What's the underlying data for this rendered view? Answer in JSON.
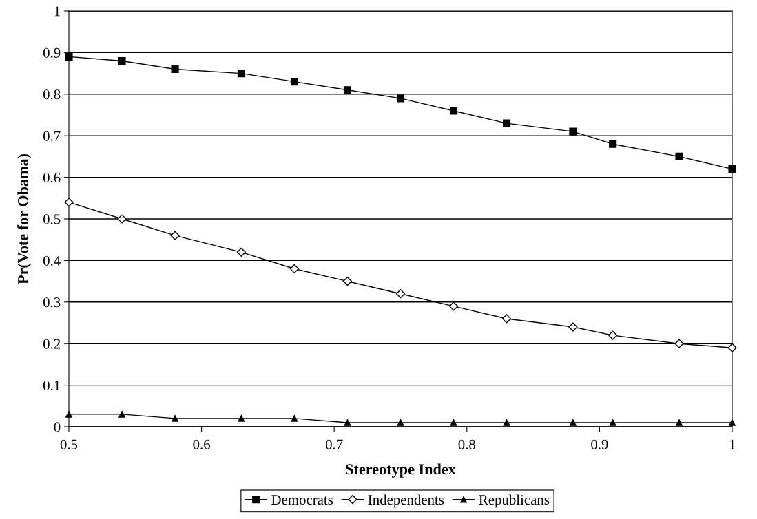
{
  "chart_data": {
    "type": "line",
    "xlabel": "Stereotype Index",
    "ylabel": "Pr(Vote for Obama)",
    "x": [
      0.5,
      0.54,
      0.58,
      0.63,
      0.67,
      0.71,
      0.75,
      0.79,
      0.83,
      0.88,
      0.91,
      0.96,
      1
    ],
    "series": [
      {
        "name": "Democrats",
        "color": "#000000",
        "marker": "square",
        "values": [
          0.89,
          0.88,
          0.86,
          0.85,
          0.83,
          0.81,
          0.79,
          0.76,
          0.73,
          0.71,
          0.68,
          0.65,
          0.62
        ]
      },
      {
        "name": "Independents",
        "color": "#000000",
        "marker": "diamond",
        "values": [
          0.54,
          0.5,
          0.46,
          0.42,
          0.38,
          0.35,
          0.32,
          0.29,
          0.26,
          0.24,
          0.22,
          0.2,
          0.19
        ]
      },
      {
        "name": "Republicans",
        "color": "#000000",
        "marker": "triangle",
        "values": [
          0.03,
          0.03,
          0.02,
          0.02,
          0.02,
          0.01,
          0.01,
          0.01,
          0.01,
          0.01,
          0.01,
          0.01,
          0.01
        ]
      }
    ],
    "xlim": [
      0.5,
      1
    ],
    "xticks": [
      0.5,
      0.6,
      0.7,
      0.8,
      0.9,
      1
    ],
    "ylim": [
      0,
      1
    ],
    "yticks": [
      0,
      0.1,
      0.2,
      0.3,
      0.4,
      0.5,
      0.6,
      0.7,
      0.8,
      0.9,
      1
    ],
    "grid": "y",
    "legend": "bottom",
    "line_style": "solid"
  }
}
